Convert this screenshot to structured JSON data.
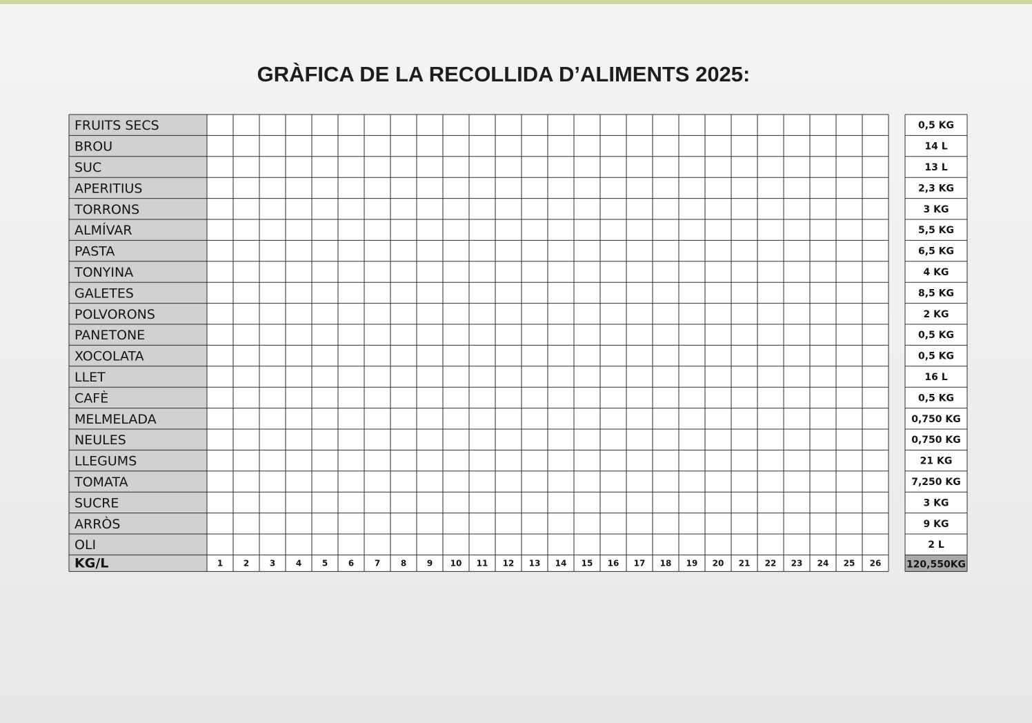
{
  "chart_data": {
    "type": "bar",
    "orientation": "horizontal",
    "title": "GRÀFICA DE LA RECOLLIDA D’ALIMENTS 2025:",
    "xlabel": "KG/L",
    "xlim": [
      0,
      26
    ],
    "x_ticks": [
      "1",
      "2",
      "3",
      "4",
      "5",
      "6",
      "7",
      "8",
      "9",
      "10",
      "11",
      "12",
      "13",
      "14",
      "15",
      "16",
      "17",
      "18",
      "19",
      "20",
      "21",
      "22",
      "23",
      "24",
      "25",
      "26"
    ],
    "grid": true,
    "total_label": "120,550KG",
    "categories": [
      "FRUITS SECS",
      "BROU",
      "SUC",
      "APERITIUS",
      "TORRONS",
      "ALMÍVAR",
      "PASTA",
      "TONYINA",
      "GALETES",
      "POLVORONS",
      "PANETONE",
      "XOCOLATA",
      "LLET",
      "CAFÈ",
      "MELMELADA",
      "NEULES",
      "LLEGUMS",
      "TOMATA",
      "SUCRE",
      "ARRÒS",
      "OLI"
    ],
    "values": [
      0.5,
      14,
      13,
      2.3,
      3,
      5.5,
      6.5,
      4,
      8.5,
      2,
      0.5,
      0.5,
      16,
      0.5,
      0.75,
      0.75,
      21,
      7.25,
      3,
      9,
      2
    ],
    "value_labels": [
      "0,5 KG",
      "14 L",
      "13 L",
      "2,3 KG",
      "3 KG",
      "5,5 KG",
      "6,5 KG",
      "4 KG",
      "8,5 KG",
      "2 KG",
      "0,5 KG",
      "0,5 KG",
      "16 L",
      "0,5 KG",
      "0,750 KG",
      "0,750 KG",
      "21 KG",
      "7,250 KG",
      "3 KG",
      "9 KG",
      "2 L"
    ],
    "colors": [
      "#6f48b8",
      "#1f5fb4",
      "#f5c21c",
      "#1e4e80",
      "#ef7848",
      "#e0202a",
      "#1f8ee0",
      "#6a40b5",
      "#f4ec1a",
      "#98303f",
      "#f2b48e",
      "#82b56e",
      "#c7193c",
      "#f2a030",
      "#1c3f70",
      "#1f9aec",
      "#55ab4e",
      "#e2389a",
      "#cf5a4c",
      "#2a72c0",
      "#e03c4a"
    ]
  }
}
